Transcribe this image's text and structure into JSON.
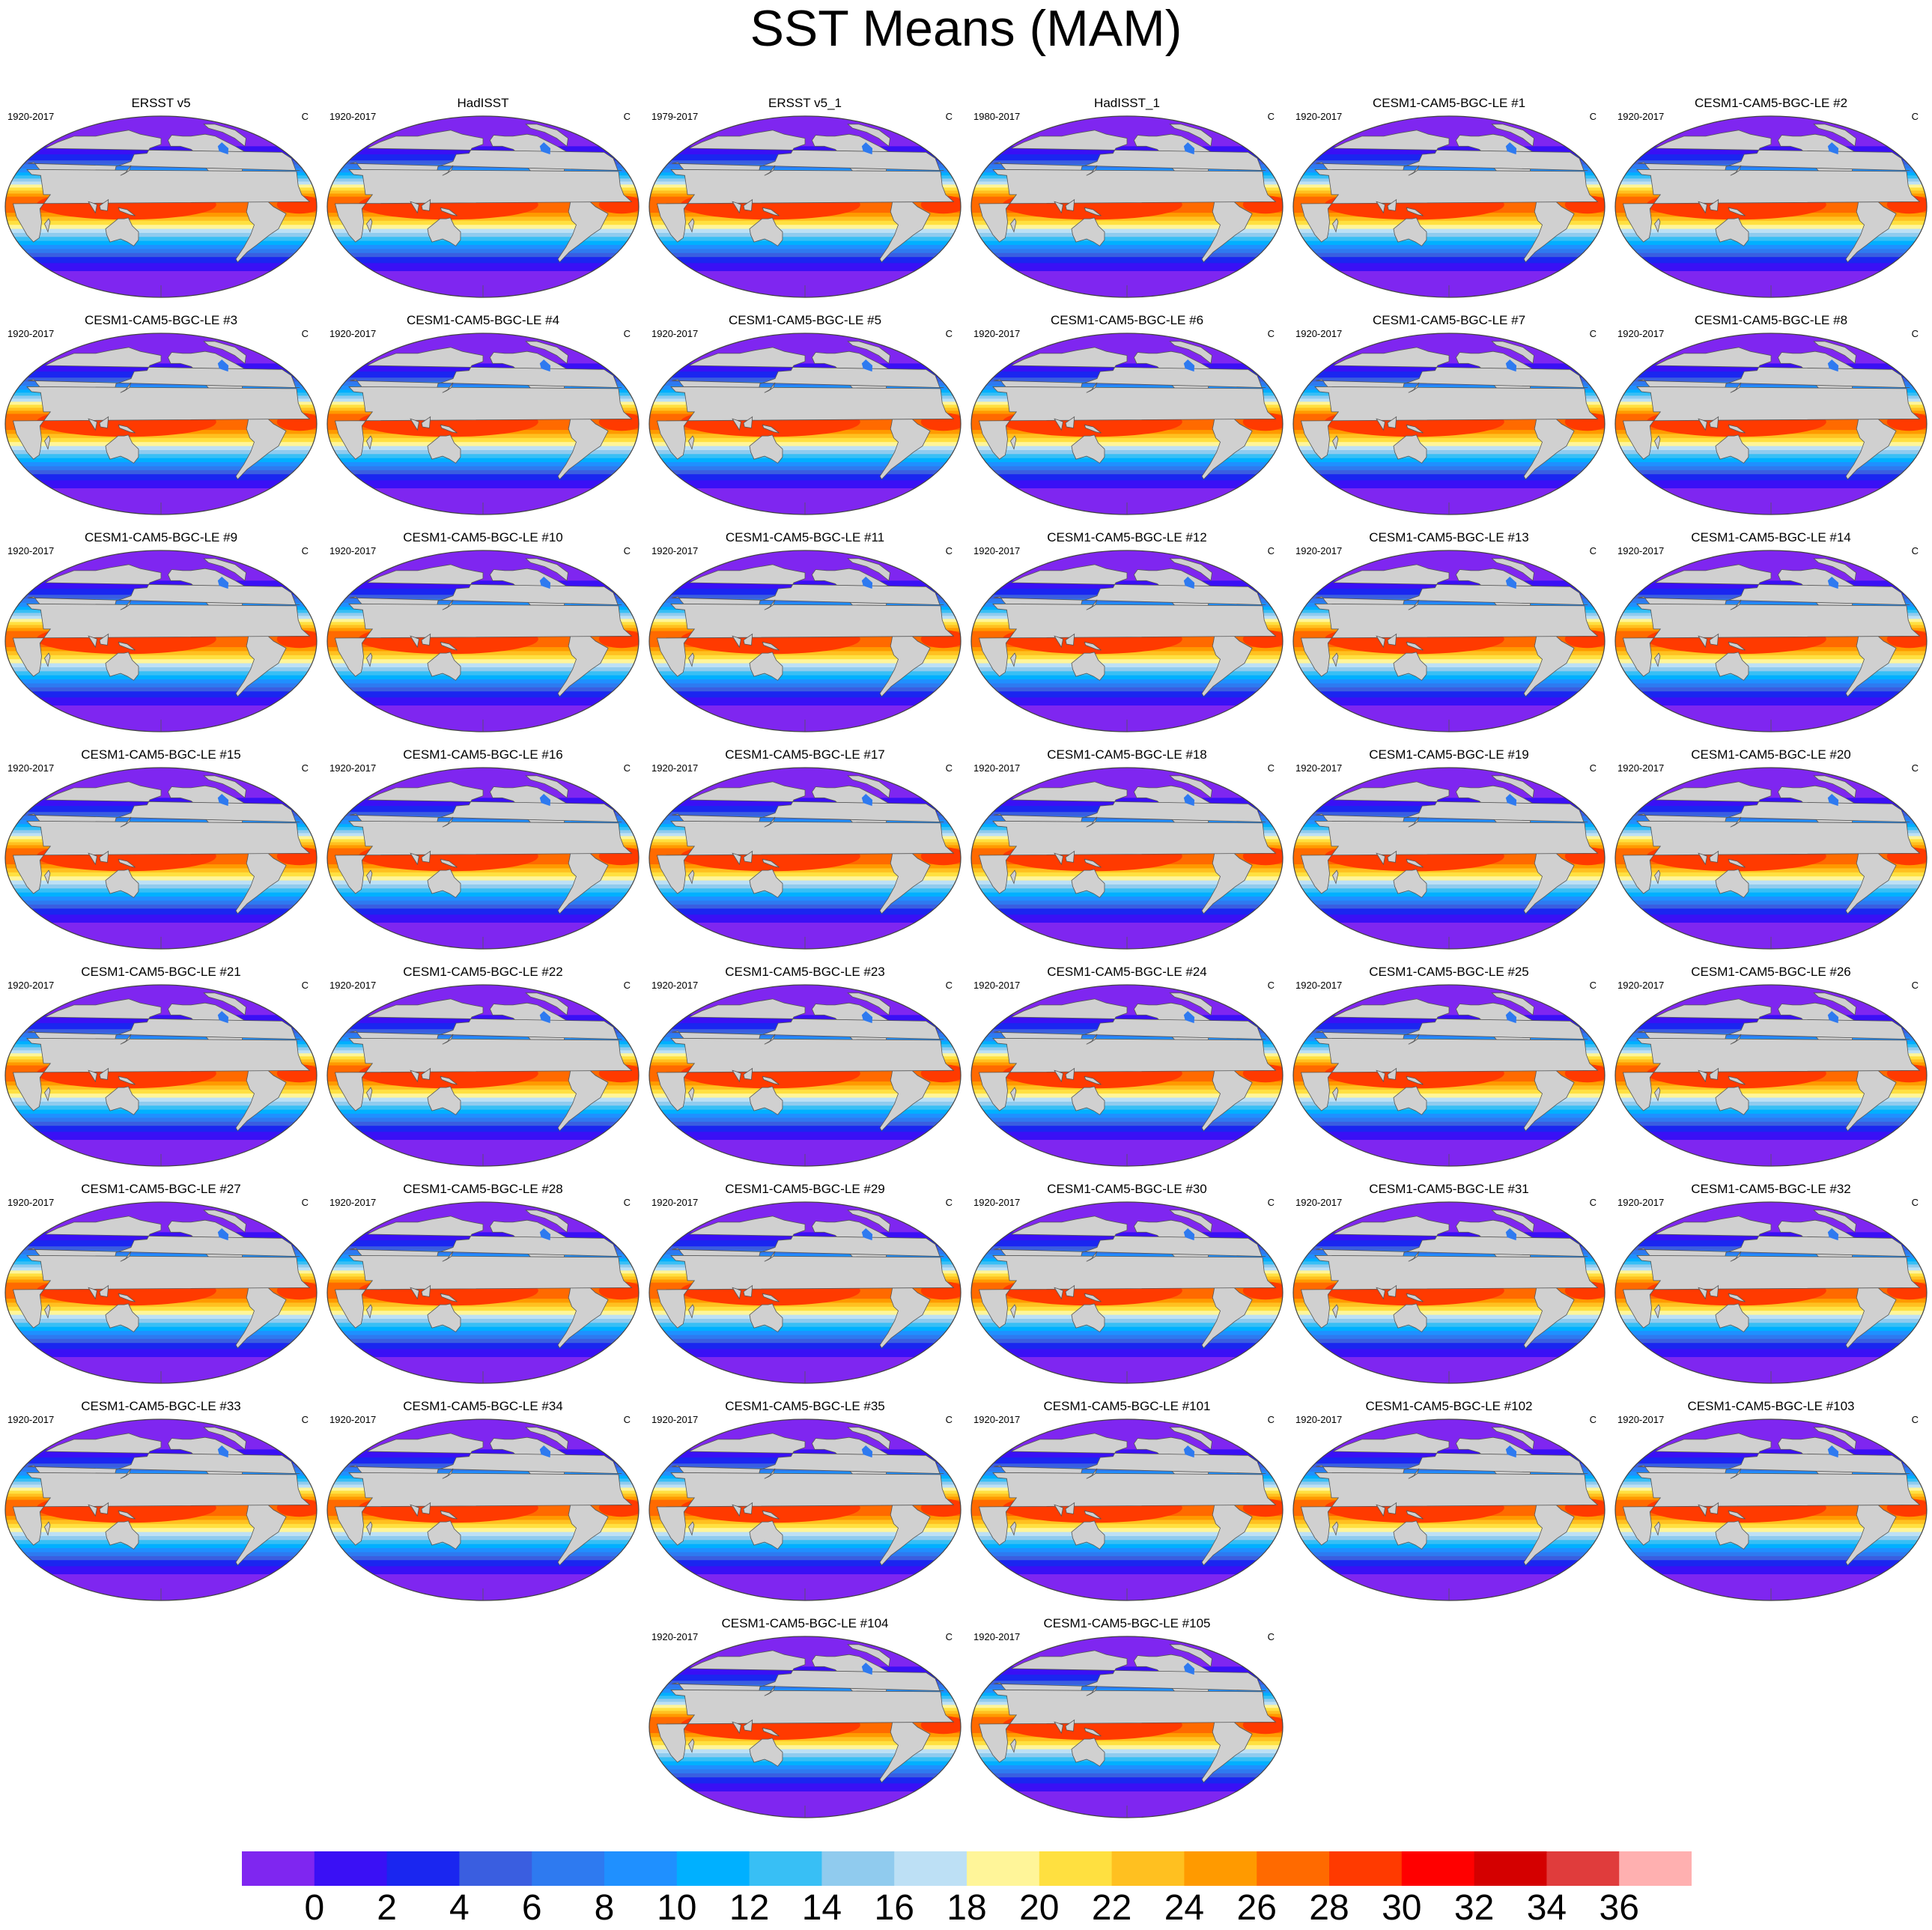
{
  "title": "SST Means (MAM)",
  "units": "C",
  "panels": [
    {
      "title": "ERSST v5",
      "period": "1920-2017"
    },
    {
      "title": "HadISST",
      "period": "1920-2017"
    },
    {
      "title": "ERSST v5_1",
      "period": "1979-2017"
    },
    {
      "title": "HadISST_1",
      "period": "1980-2017"
    },
    {
      "title": "CESM1-CAM5-BGC-LE #1",
      "period": "1920-2017"
    },
    {
      "title": "CESM1-CAM5-BGC-LE #2",
      "period": "1920-2017"
    },
    {
      "title": "CESM1-CAM5-BGC-LE #3",
      "period": "1920-2017"
    },
    {
      "title": "CESM1-CAM5-BGC-LE #4",
      "period": "1920-2017"
    },
    {
      "title": "CESM1-CAM5-BGC-LE #5",
      "period": "1920-2017"
    },
    {
      "title": "CESM1-CAM5-BGC-LE #6",
      "period": "1920-2017"
    },
    {
      "title": "CESM1-CAM5-BGC-LE #7",
      "period": "1920-2017"
    },
    {
      "title": "CESM1-CAM5-BGC-LE #8",
      "period": "1920-2017"
    },
    {
      "title": "CESM1-CAM5-BGC-LE #9",
      "period": "1920-2017"
    },
    {
      "title": "CESM1-CAM5-BGC-LE #10",
      "period": "1920-2017"
    },
    {
      "title": "CESM1-CAM5-BGC-LE #11",
      "period": "1920-2017"
    },
    {
      "title": "CESM1-CAM5-BGC-LE #12",
      "period": "1920-2017"
    },
    {
      "title": "CESM1-CAM5-BGC-LE #13",
      "period": "1920-2017"
    },
    {
      "title": "CESM1-CAM5-BGC-LE #14",
      "period": "1920-2017"
    },
    {
      "title": "CESM1-CAM5-BGC-LE #15",
      "period": "1920-2017"
    },
    {
      "title": "CESM1-CAM5-BGC-LE #16",
      "period": "1920-2017"
    },
    {
      "title": "CESM1-CAM5-BGC-LE #17",
      "period": "1920-2017"
    },
    {
      "title": "CESM1-CAM5-BGC-LE #18",
      "period": "1920-2017"
    },
    {
      "title": "CESM1-CAM5-BGC-LE #19",
      "period": "1920-2017"
    },
    {
      "title": "CESM1-CAM5-BGC-LE #20",
      "period": "1920-2017"
    },
    {
      "title": "CESM1-CAM5-BGC-LE #21",
      "period": "1920-2017"
    },
    {
      "title": "CESM1-CAM5-BGC-LE #22",
      "period": "1920-2017"
    },
    {
      "title": "CESM1-CAM5-BGC-LE #23",
      "period": "1920-2017"
    },
    {
      "title": "CESM1-CAM5-BGC-LE #24",
      "period": "1920-2017"
    },
    {
      "title": "CESM1-CAM5-BGC-LE #25",
      "period": "1920-2017"
    },
    {
      "title": "CESM1-CAM5-BGC-LE #26",
      "period": "1920-2017"
    },
    {
      "title": "CESM1-CAM5-BGC-LE #27",
      "period": "1920-2017"
    },
    {
      "title": "CESM1-CAM5-BGC-LE #28",
      "period": "1920-2017"
    },
    {
      "title": "CESM1-CAM5-BGC-LE #29",
      "period": "1920-2017"
    },
    {
      "title": "CESM1-CAM5-BGC-LE #30",
      "period": "1920-2017"
    },
    {
      "title": "CESM1-CAM5-BGC-LE #31",
      "period": "1920-2017"
    },
    {
      "title": "CESM1-CAM5-BGC-LE #32",
      "period": "1920-2017"
    },
    {
      "title": "CESM1-CAM5-BGC-LE #33",
      "period": "1920-2017"
    },
    {
      "title": "CESM1-CAM5-BGC-LE #34",
      "period": "1920-2017"
    },
    {
      "title": "CESM1-CAM5-BGC-LE #35",
      "period": "1920-2017"
    },
    {
      "title": "CESM1-CAM5-BGC-LE #101",
      "period": "1920-2017"
    },
    {
      "title": "CESM1-CAM5-BGC-LE #102",
      "period": "1920-2017"
    },
    {
      "title": "CESM1-CAM5-BGC-LE #103",
      "period": "1920-2017"
    },
    {
      "title": "CESM1-CAM5-BGC-LE #104",
      "period": "1920-2017"
    },
    {
      "title": "CESM1-CAM5-BGC-LE #105",
      "period": "1920-2017"
    }
  ],
  "colorbar": {
    "labels": [
      "0",
      "2",
      "4",
      "6",
      "8",
      "10",
      "12",
      "14",
      "16",
      "18",
      "20",
      "22",
      "24",
      "26",
      "28",
      "30",
      "32",
      "34",
      "36"
    ],
    "colors": [
      "#7f26f0",
      "#3a10f5",
      "#1a26f0",
      "#3a5ee0",
      "#2e7af0",
      "#1f90ff",
      "#00b0ff",
      "#38bff5",
      "#90cbee",
      "#bde0f5",
      "#fff599",
      "#ffe040",
      "#ffc020",
      "#ff9a00",
      "#ff6a00",
      "#ff3a00",
      "#ff0000",
      "#d40000",
      "#e03c3c",
      "#ffb0b0"
    ]
  },
  "colors": {
    "land": "#d0d0d0",
    "missing": "#ffffff",
    "coastline": "#555555"
  }
}
